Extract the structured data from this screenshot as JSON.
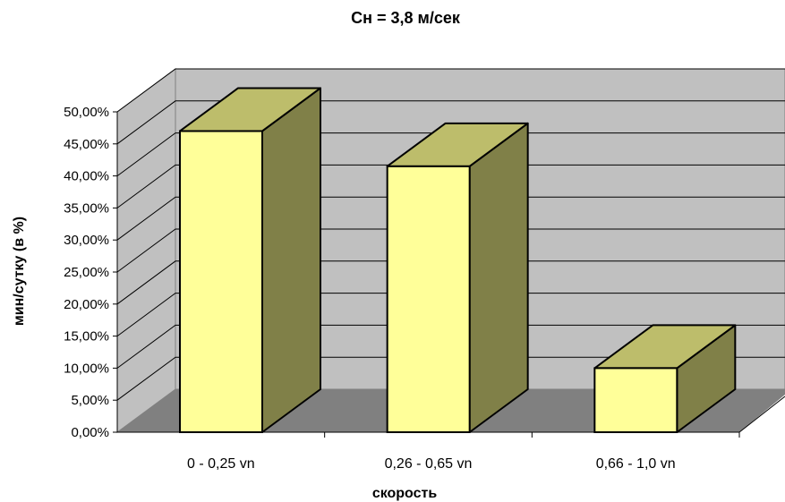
{
  "chart_data": {
    "type": "bar",
    "title": "Сн = 3,8 м/сек",
    "xlabel": "скорость",
    "ylabel": "мин/сутку (в %)",
    "categories": [
      "0 - 0,25 vn",
      "0,26 - 0,65 vn",
      "0,66 - 1,0 vn"
    ],
    "values": [
      0.47,
      0.415,
      0.1
    ],
    "ylim": [
      0,
      0.5
    ],
    "yticks": [
      "0,00%",
      "5,00%",
      "10,00%",
      "15,00%",
      "20,00%",
      "25,00%",
      "30,00%",
      "35,00%",
      "40,00%",
      "45,00%",
      "50,00%"
    ],
    "grid": true,
    "three_d": true,
    "colors": {
      "bar_front": "#FFFF99",
      "bar_top": "#BDBD6B",
      "bar_side": "#808048",
      "wall": "#C0C0C0",
      "floor": "#808080"
    }
  }
}
